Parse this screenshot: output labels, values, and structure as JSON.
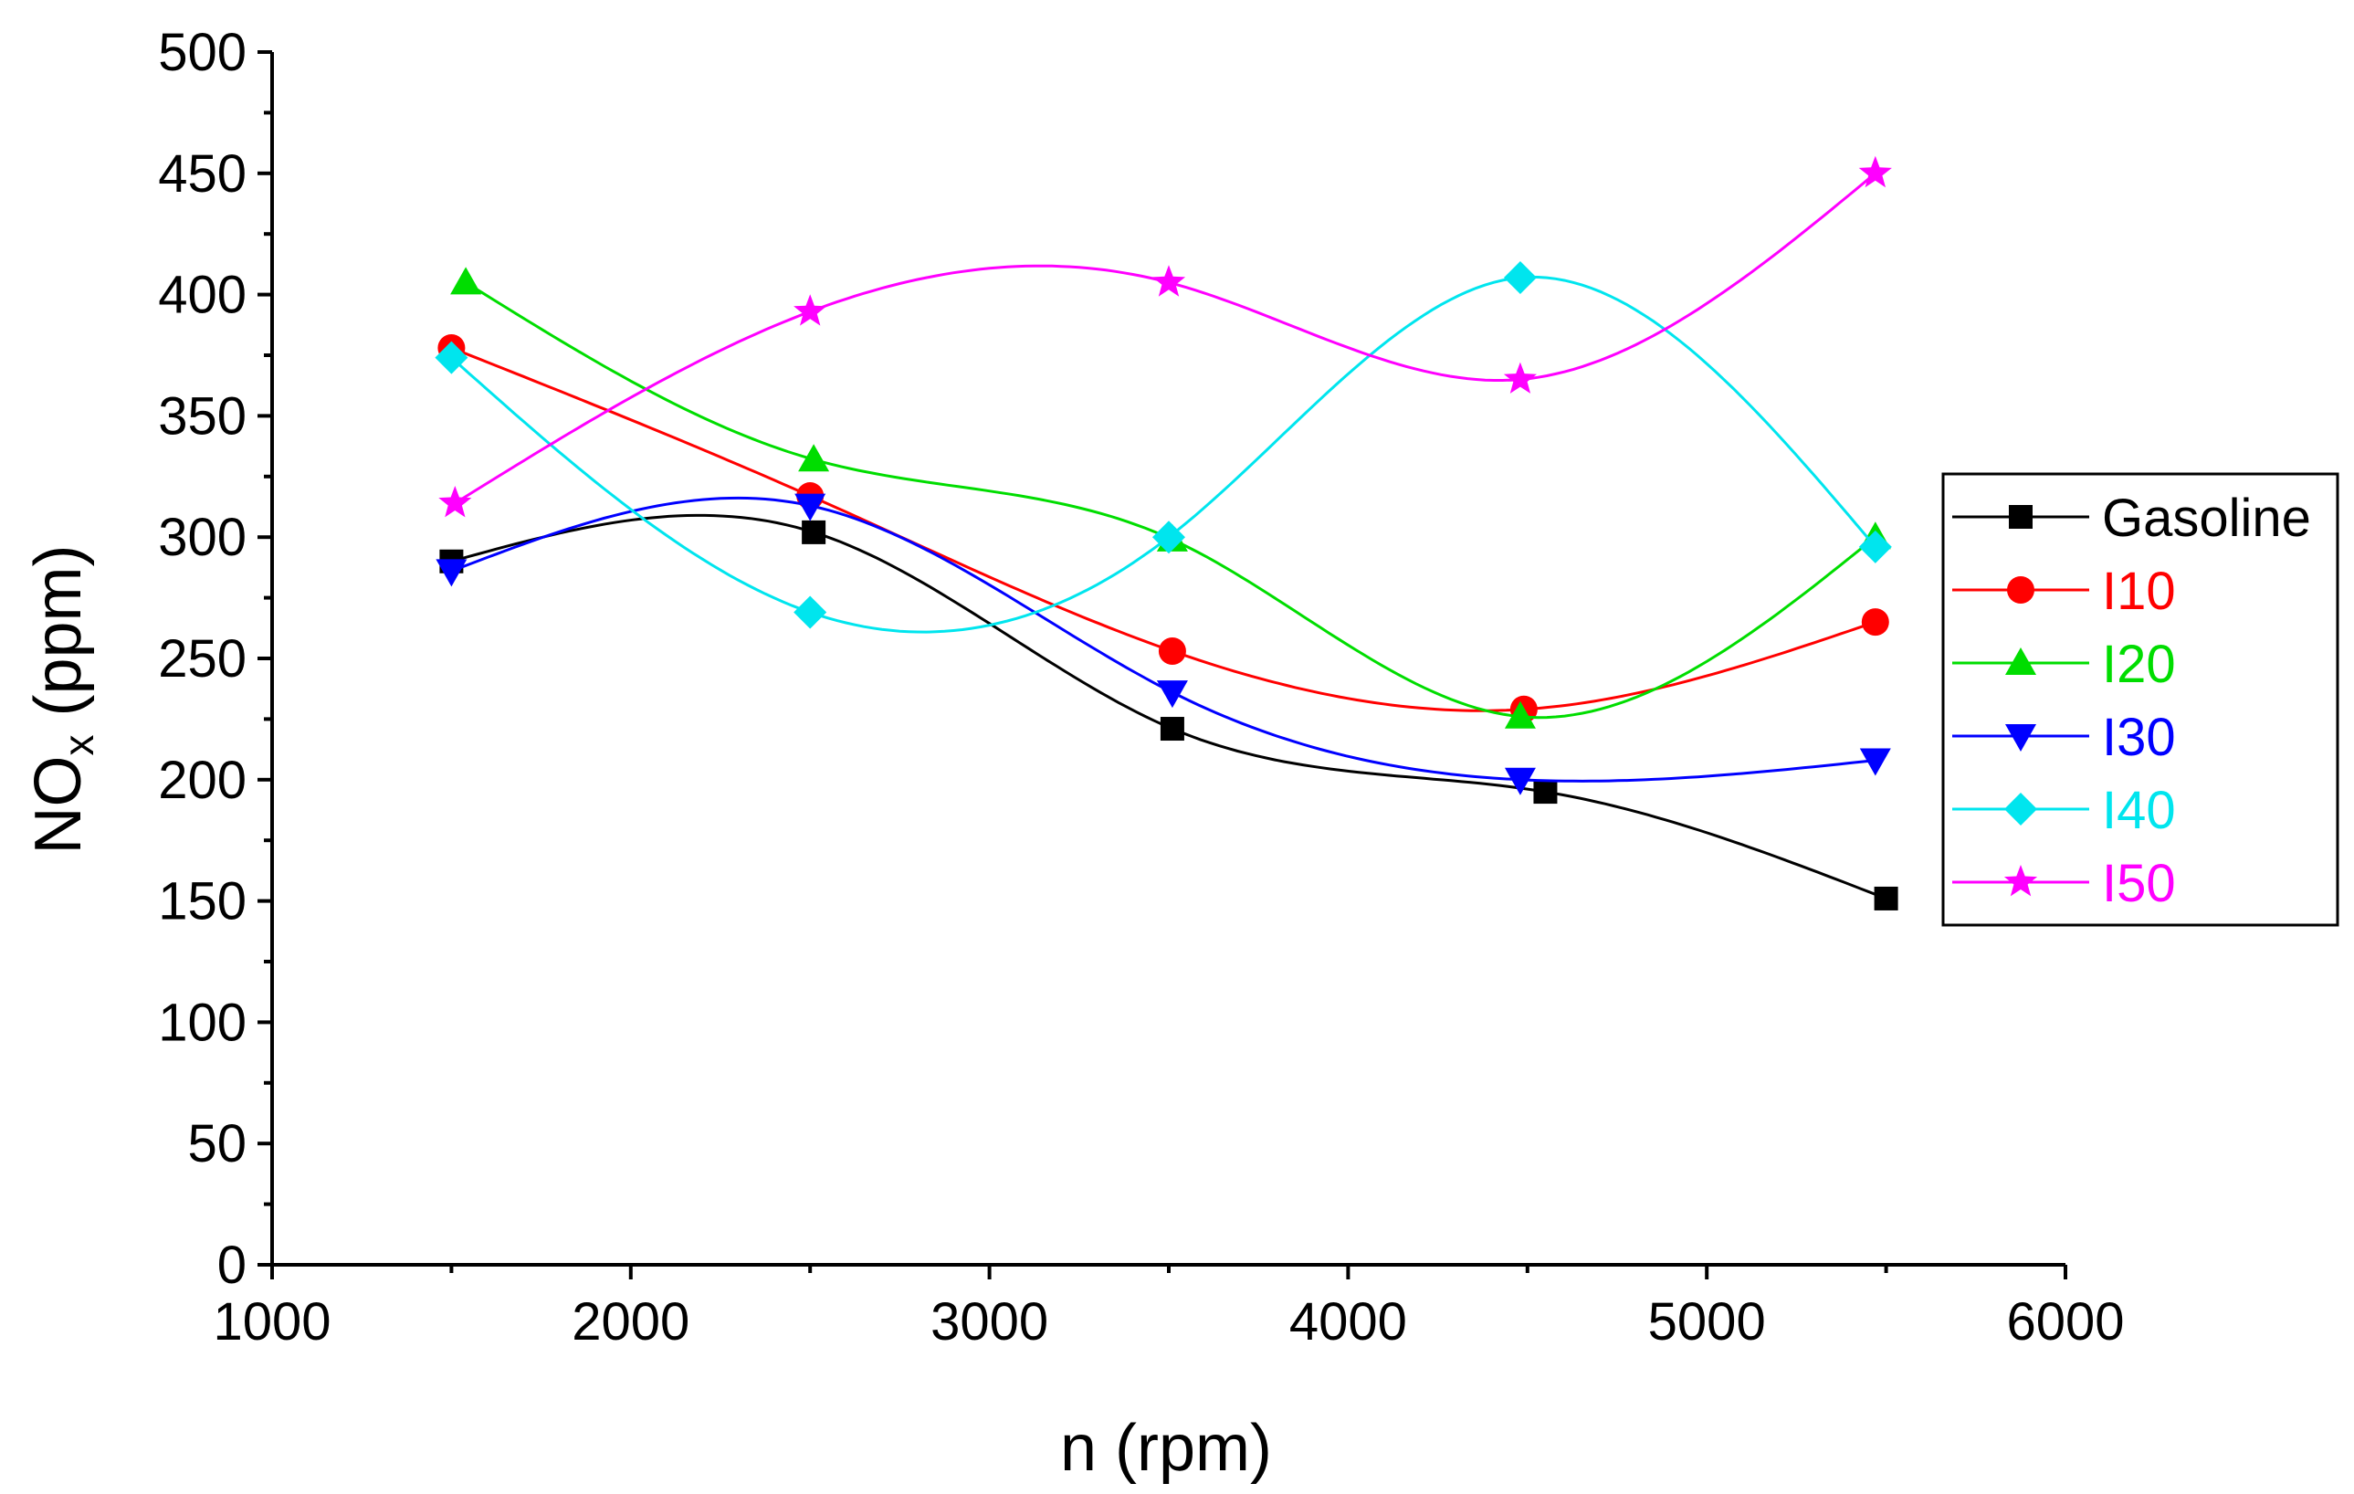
{
  "chart_data": {
    "type": "line",
    "title": "",
    "xlabel": "n (rpm)",
    "ylabel": {
      "main": "NO",
      "sub": "x",
      "units": " (ppm)"
    },
    "xlim": [
      1000,
      6000
    ],
    "ylim": [
      0,
      500
    ],
    "xticks": [
      1000,
      2000,
      3000,
      4000,
      5000,
      6000
    ],
    "yticks": [
      0,
      50,
      100,
      150,
      200,
      250,
      300,
      350,
      400,
      450,
      500
    ],
    "smooth": true,
    "grid": false,
    "legend_position": "right",
    "series": [
      {
        "name": "Gasoline",
        "color": "#000000",
        "marker": "square",
        "x": [
          1500,
          2510,
          3510,
          4550,
          5500
        ],
        "y": [
          290,
          302,
          221,
          195,
          151
        ]
      },
      {
        "name": "I10",
        "color": "#ff0000",
        "marker": "circle",
        "x": [
          1500,
          2500,
          3510,
          4490,
          5470
        ],
        "y": [
          378,
          317,
          253,
          229,
          265
        ]
      },
      {
        "name": "I20",
        "color": "#00dd00",
        "marker": "triangle-up",
        "x": [
          1540,
          2510,
          3510,
          4480,
          5470
        ],
        "y": [
          405,
          332,
          299,
          226,
          300
        ]
      },
      {
        "name": "I30",
        "color": "#0000ff",
        "marker": "triangle-down",
        "x": [
          1500,
          2500,
          3510,
          4480,
          5470
        ],
        "y": [
          286,
          313,
          236,
          200,
          208
        ]
      },
      {
        "name": "I40",
        "color": "#00e5ee",
        "marker": "diamond",
        "x": [
          1500,
          2500,
          3500,
          4480,
          5470
        ],
        "y": [
          374,
          269,
          300,
          407,
          296
        ]
      },
      {
        "name": "I50",
        "color": "#ff00ff",
        "marker": "star",
        "x": [
          1510,
          2500,
          3500,
          4480,
          5470
        ],
        "y": [
          314,
          393,
          405,
          365,
          450
        ]
      }
    ]
  }
}
